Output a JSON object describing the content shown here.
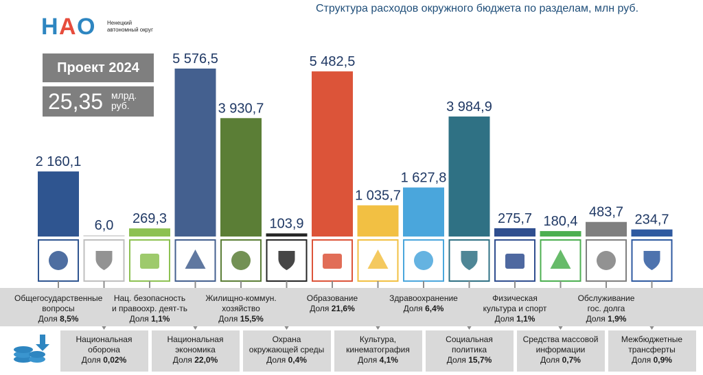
{
  "header": {
    "title": "Структура расходов окружного бюджета по разделам, млн руб.",
    "logo_mark": "НАО",
    "logo_text": "Ненецкий автономный округ"
  },
  "summary": {
    "project_label": "Проект 2024",
    "total": "25,35",
    "unit": "млрд. руб."
  },
  "chart_data": {
    "type": "bar",
    "title": "Структура расходов окружного бюджета по разделам, млн руб.",
    "categories": [
      "Общегосударственные вопросы",
      "Национальная оборона",
      "Нац. безопасность и правоохр. деят-ть",
      "Национальная экономика",
      "Жилищно-коммун. хозяйство",
      "Охрана окружающей среды",
      "Образование",
      "Культура, кинематография",
      "Здравоохранение",
      "Социальная политика",
      "Физическая культура и спорт",
      "Средства массовой информации",
      "Обслуживание гос. долга",
      "Межбюджетные трансферты"
    ],
    "values": [
      2160.1,
      6.0,
      269.3,
      5576.5,
      3930.7,
      103.9,
      5482.5,
      1035.7,
      1627.8,
      3984.9,
      275.7,
      180.4,
      483.7,
      234.7
    ],
    "value_labels": [
      "2 160,1",
      "6,0",
      "269,3",
      "5 576,5",
      "3 930,7",
      "103,9",
      "5 482,5",
      "1 035,7",
      "1 627,8",
      "3 984,9",
      "275,7",
      "180,4",
      "483,7",
      "234,7"
    ],
    "shares": [
      "8,5%",
      "0,02%",
      "1,1%",
      "22,0%",
      "15,5%",
      "0,4%",
      "21,6%",
      "4,1%",
      "6,4%",
      "15,7%",
      "1,1%",
      "0,7%",
      "1,9%",
      "0,9%"
    ],
    "colors": [
      "#2f5590",
      "#d9d9d9",
      "#8dc152",
      "#44608f",
      "#5b7e36",
      "#262626",
      "#dc5439",
      "#f2c043",
      "#4aa6dc",
      "#2f7184",
      "#2f4e8f",
      "#4caf50",
      "#7f7f7f",
      "#2f5aa0"
    ],
    "icons": [
      "eagle-emblem-icon",
      "shield-icon",
      "police-cap-icon",
      "city-road-icon",
      "water-tap-icon",
      "leaf-icon",
      "student-desk-icon",
      "movie-camera-icon",
      "medical-caduceus-icon",
      "family-icon",
      "sport-podium-icon",
      "megaphone-icon",
      "briefcase-icon",
      "money-bag-icon"
    ],
    "ylim": [
      0,
      5576.5
    ]
  },
  "share_prefix": "Доля",
  "labels_top": [
    {
      "lines": [
        "Общегосударственные",
        "вопросы"
      ],
      "share": "8,5%"
    },
    {
      "lines": [
        "Нац. безопасность",
        "и правоохр. деят-ть"
      ],
      "share": "1,1%"
    },
    {
      "lines": [
        "Жилищно-коммун.",
        "хозяйство"
      ],
      "share": "15,5%"
    },
    {
      "lines": [
        "Образование"
      ],
      "share": "21,6%"
    },
    {
      "lines": [
        "Здравоохранение"
      ],
      "share": "6,4%"
    },
    {
      "lines": [
        "Физическая",
        "культура и спорт"
      ],
      "share": "1,1%"
    },
    {
      "lines": [
        "Обслуживание",
        "гос. долга"
      ],
      "share": "1,9%"
    }
  ],
  "labels_bottom": [
    {
      "lines": [
        "Национальная",
        "оборона"
      ],
      "share": "0,02%"
    },
    {
      "lines": [
        "Национальная",
        "экономика"
      ],
      "share": "22,0%"
    },
    {
      "lines": [
        "Охрана",
        "окружающей среды"
      ],
      "share": "0,4%"
    },
    {
      "lines": [
        "Культура,",
        "кинематография"
      ],
      "share": "4,1%"
    },
    {
      "lines": [
        "Социальная",
        "политика"
      ],
      "share": "15,7%"
    },
    {
      "lines": [
        "Средства массовой",
        "информации"
      ],
      "share": "0,7%"
    },
    {
      "lines": [
        "Межбюджетные",
        "трансферты"
      ],
      "share": "0,9%"
    }
  ]
}
